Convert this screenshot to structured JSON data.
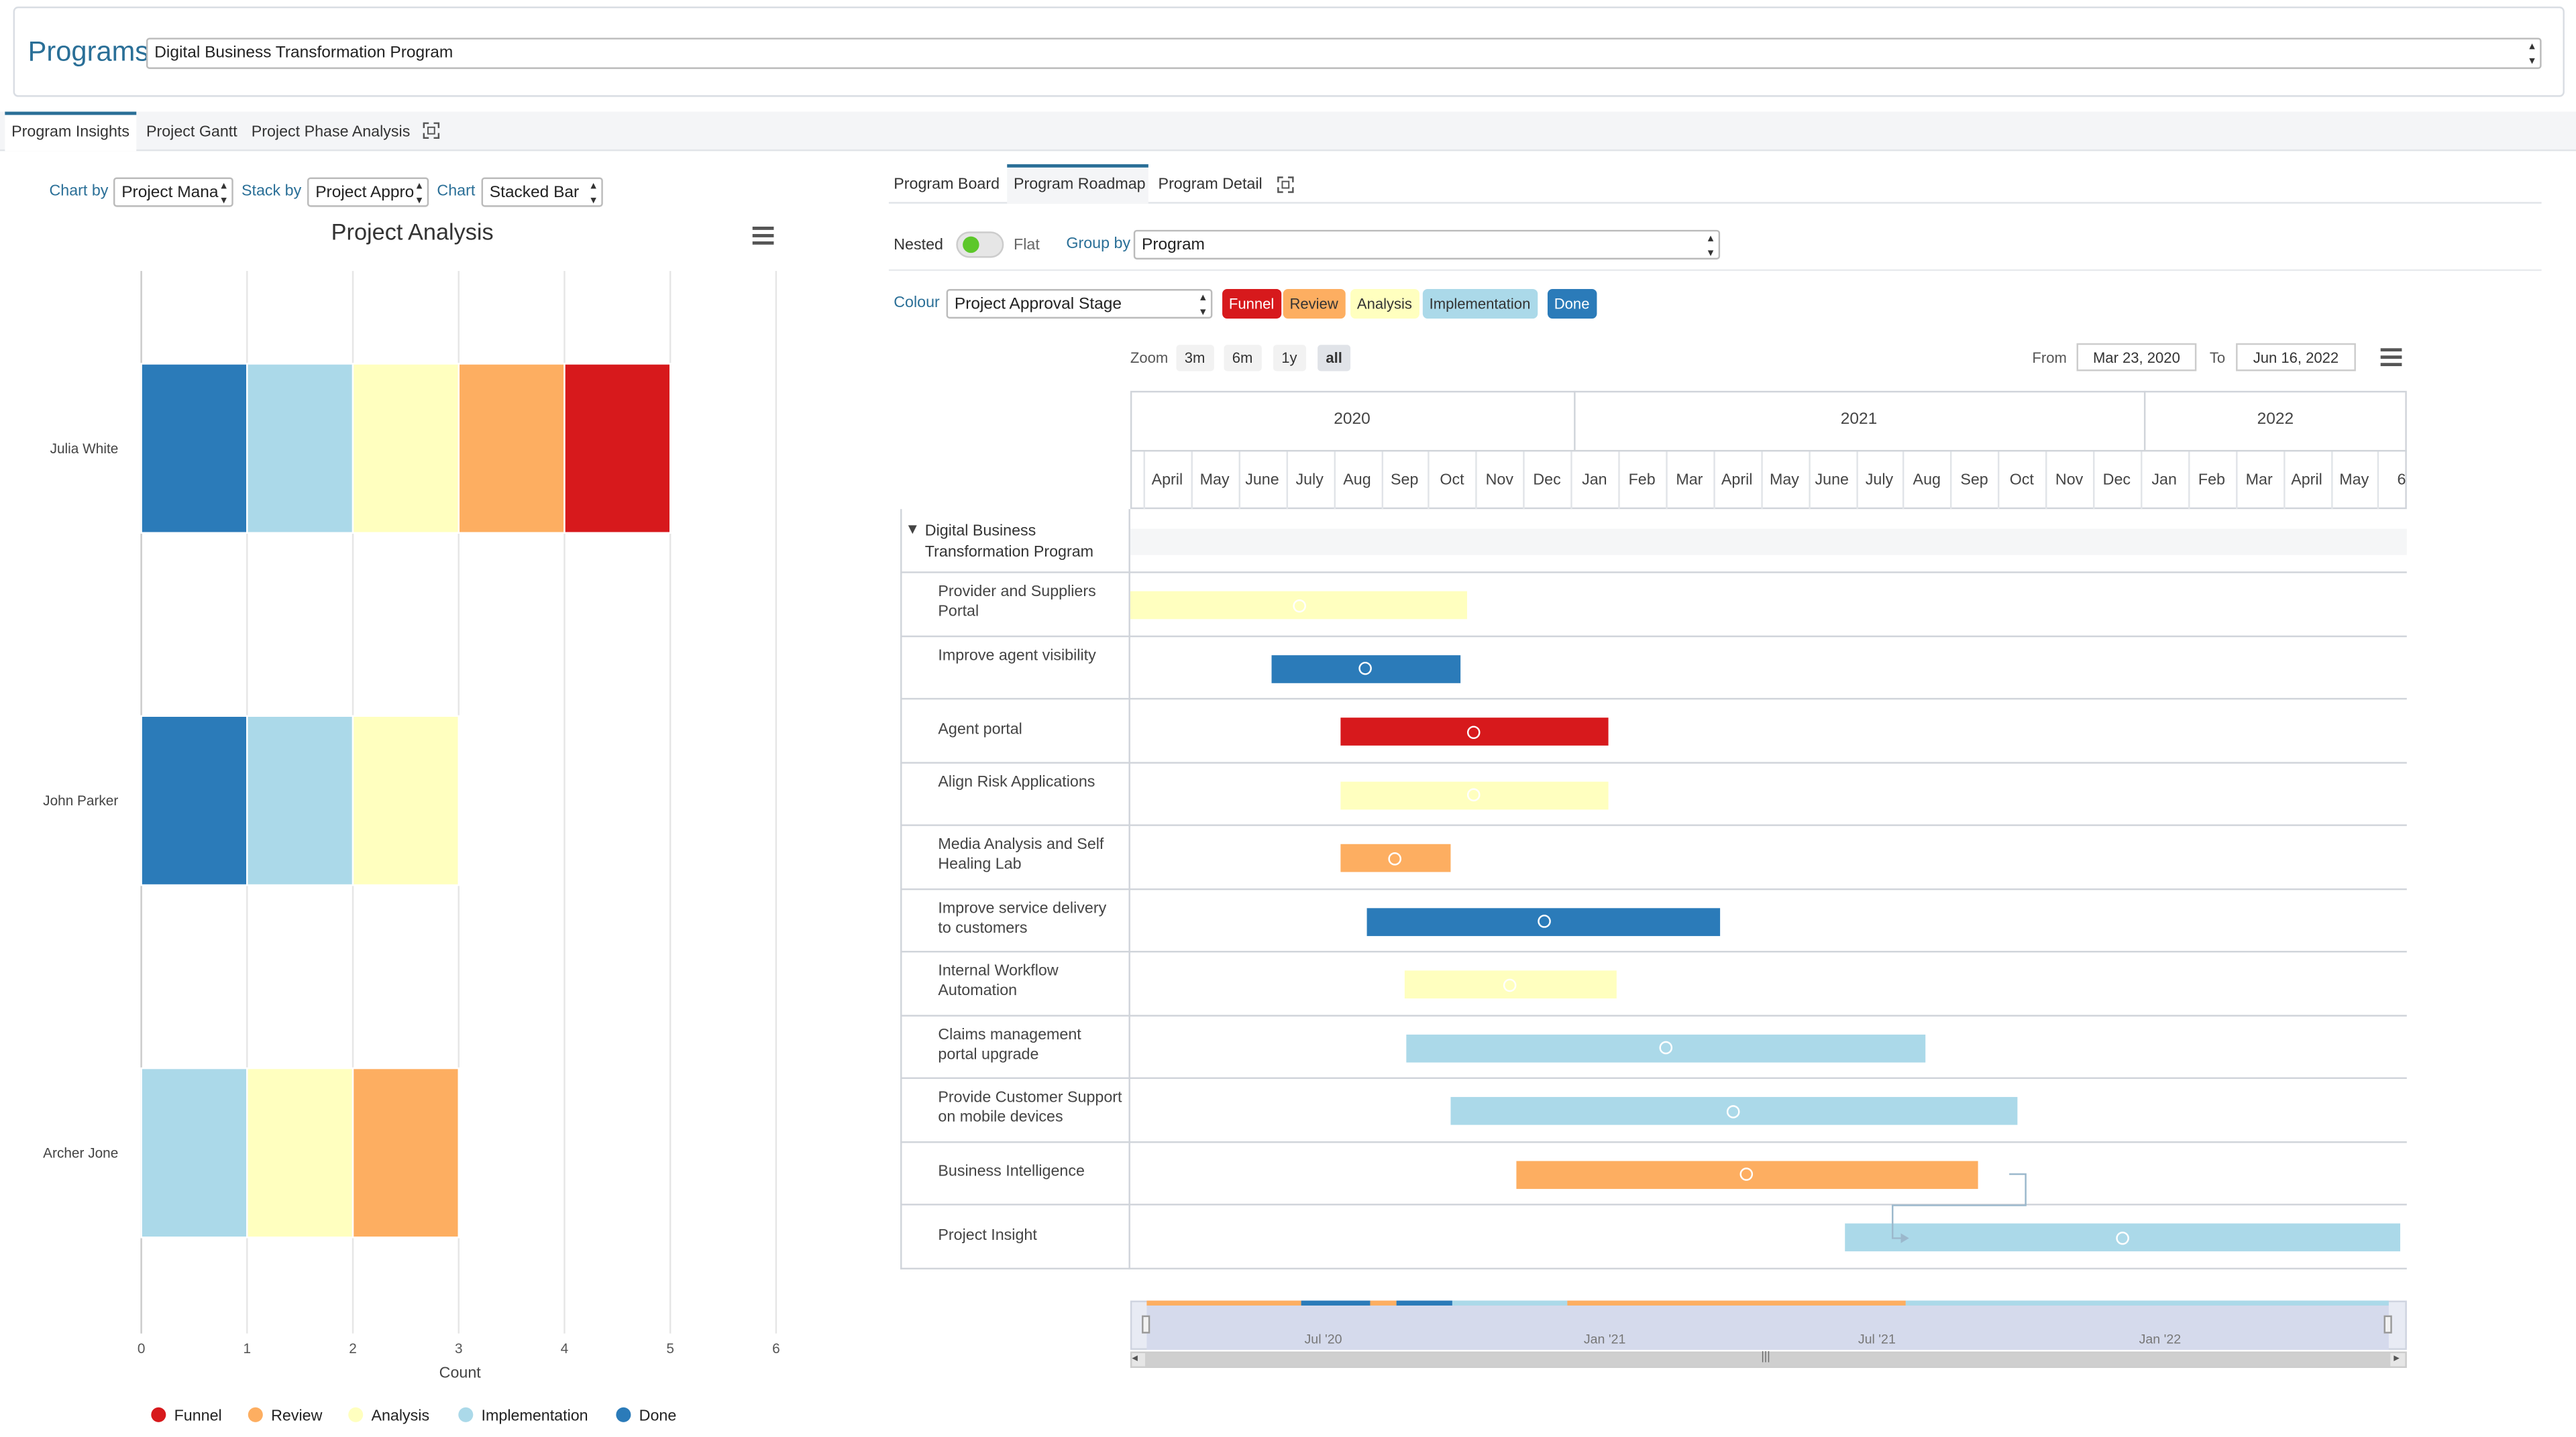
{
  "header": {
    "title": "Programs",
    "program_select": "Digital Business Transformation Program"
  },
  "main_tabs": [
    "Program Insights",
    "Project Gantt",
    "Project Phase Analysis"
  ],
  "left": {
    "chart_by_label": "Chart by",
    "chart_by_value": "Project Mana",
    "stack_by_label": "Stack by",
    "stack_by_value": "Project Appro",
    "chart_label": "Chart",
    "chart_value": "Stacked Bar"
  },
  "chart_data": {
    "type": "bar",
    "orientation": "horizontal",
    "stacked": true,
    "title": "Project Analysis",
    "xlabel": "Count",
    "ylabel": "",
    "xlim": [
      0,
      6
    ],
    "xticks": [
      "0",
      "1",
      "2",
      "3",
      "4",
      "5",
      "6"
    ],
    "categories": [
      "Julia White",
      "John Parker",
      "Archer Jone"
    ],
    "series": [
      {
        "name": "Done",
        "color": "#2b7bb9",
        "values": [
          1,
          1,
          0
        ]
      },
      {
        "name": "Implementation",
        "color": "#abd9e9",
        "values": [
          1,
          1,
          1
        ]
      },
      {
        "name": "Analysis",
        "color": "#ffffbf",
        "values": [
          1,
          1,
          1
        ]
      },
      {
        "name": "Review",
        "color": "#fdae61",
        "values": [
          1,
          0,
          1
        ]
      },
      {
        "name": "Funnel",
        "color": "#d7191c",
        "values": [
          1,
          0,
          0
        ]
      }
    ],
    "legend": [
      "Funnel",
      "Review",
      "Analysis",
      "Implementation",
      "Done"
    ],
    "legend_position": "bottom",
    "grid": true
  },
  "right": {
    "tabs": [
      "Program Board",
      "Program Roadmap",
      "Program Detail"
    ],
    "nested_label": "Nested",
    "flat_label": "Flat",
    "group_by_label": "Group by",
    "group_by_value": "Program",
    "colour_label": "Colour",
    "colour_value": "Project Approval Stage",
    "chips": [
      {
        "label": "Funnel",
        "bg": "#d7191c",
        "fg": "#ffffff"
      },
      {
        "label": "Review",
        "bg": "#fdae61",
        "fg": "#333333"
      },
      {
        "label": "Analysis",
        "bg": "#ffffbf",
        "fg": "#333333"
      },
      {
        "label": "Implementation",
        "bg": "#abd9e9",
        "fg": "#333333"
      },
      {
        "label": "Done",
        "bg": "#2b7bb9",
        "fg": "#ffffff"
      }
    ],
    "zoom_label": "Zoom",
    "zoom_options": [
      "3m",
      "6m",
      "1y",
      "all"
    ],
    "from_label": "From",
    "from_value": "Mar 23, 2020",
    "to_label": "To",
    "to_value": "Jun 16, 2022",
    "years": [
      "2020",
      "2021",
      "2022"
    ],
    "months": [
      "April",
      "May",
      "June",
      "July",
      "Aug",
      "Sep",
      "Oct",
      "Nov",
      "Dec",
      "Jan",
      "Feb",
      "Mar",
      "April",
      "May",
      "June",
      "July",
      "Aug",
      "Sep",
      "Oct",
      "Nov",
      "Dec",
      "Jan",
      "Feb",
      "Mar",
      "April",
      "May",
      "6"
    ],
    "navigator_labels": [
      "Jul '20",
      "Jan '21",
      "Jul '21",
      "Jan '22"
    ],
    "program_name": "Digital Business Transformation Program",
    "projects": [
      {
        "name": "Provider and Suppliers Portal",
        "stage": "Analysis",
        "start": "2020-03-23",
        "end": "2020-10-26"
      },
      {
        "name": "Improve agent visibility",
        "stage": "Done",
        "start": "2020-06-22",
        "end": "2020-10-21"
      },
      {
        "name": "Agent portal",
        "stage": "Funnel",
        "start": "2020-08-05",
        "end": "2021-01-24"
      },
      {
        "name": "Align Risk Applications",
        "stage": "Analysis",
        "start": "2020-08-05",
        "end": "2021-01-24"
      },
      {
        "name": "Media Analysis and Self Healing Lab",
        "stage": "Review",
        "start": "2020-08-05",
        "end": "2020-10-15"
      },
      {
        "name": "Improve service delivery to customers",
        "stage": "Done",
        "start": "2020-08-22",
        "end": "2021-04-06"
      },
      {
        "name": "Internal Workflow Automation",
        "stage": "Analysis",
        "start": "2020-09-15",
        "end": "2021-01-29"
      },
      {
        "name": "Claims management portal upgrade",
        "stage": "Implementation",
        "start": "2020-09-17",
        "end": "2021-08-15"
      },
      {
        "name": "Provide Customer Support on mobile devices",
        "stage": "Implementation",
        "start": "2020-10-15",
        "end": "2021-10-13"
      },
      {
        "name": "Business Intelligence",
        "stage": "Review",
        "start": "2020-11-26",
        "end": "2021-09-18"
      },
      {
        "name": "Project Insight",
        "stage": "Implementation",
        "start": "2021-06-25",
        "end": "2022-06-16"
      }
    ]
  }
}
